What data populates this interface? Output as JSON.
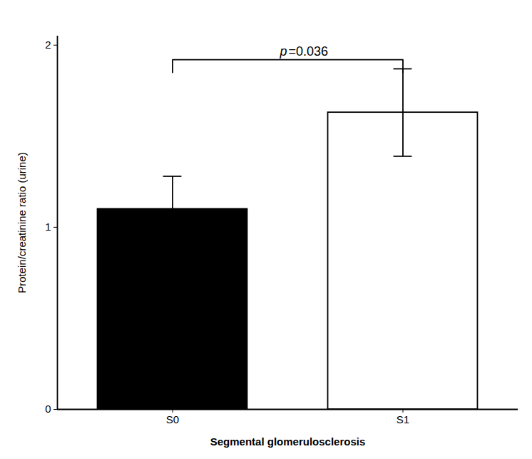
{
  "chart_data": {
    "type": "bar",
    "categories": [
      "S0",
      "S1"
    ],
    "values": [
      1.1,
      1.63
    ],
    "errors": [
      0.18,
      0.24
    ],
    "colors": [
      "#000000",
      "#ffffff"
    ],
    "xlabel": "Segmental glomerulosclerosis",
    "ylabel": "Protein/creatinine ratio (urine)",
    "ylim": [
      0,
      2.05
    ],
    "yticks": [
      0,
      1,
      2
    ],
    "grid": false,
    "annotations": [
      {
        "type": "bracket",
        "from": "S0",
        "to": "S1",
        "y": 1.92,
        "drop": 0.07,
        "text": "p=0.036",
        "italic": "p"
      }
    ]
  }
}
